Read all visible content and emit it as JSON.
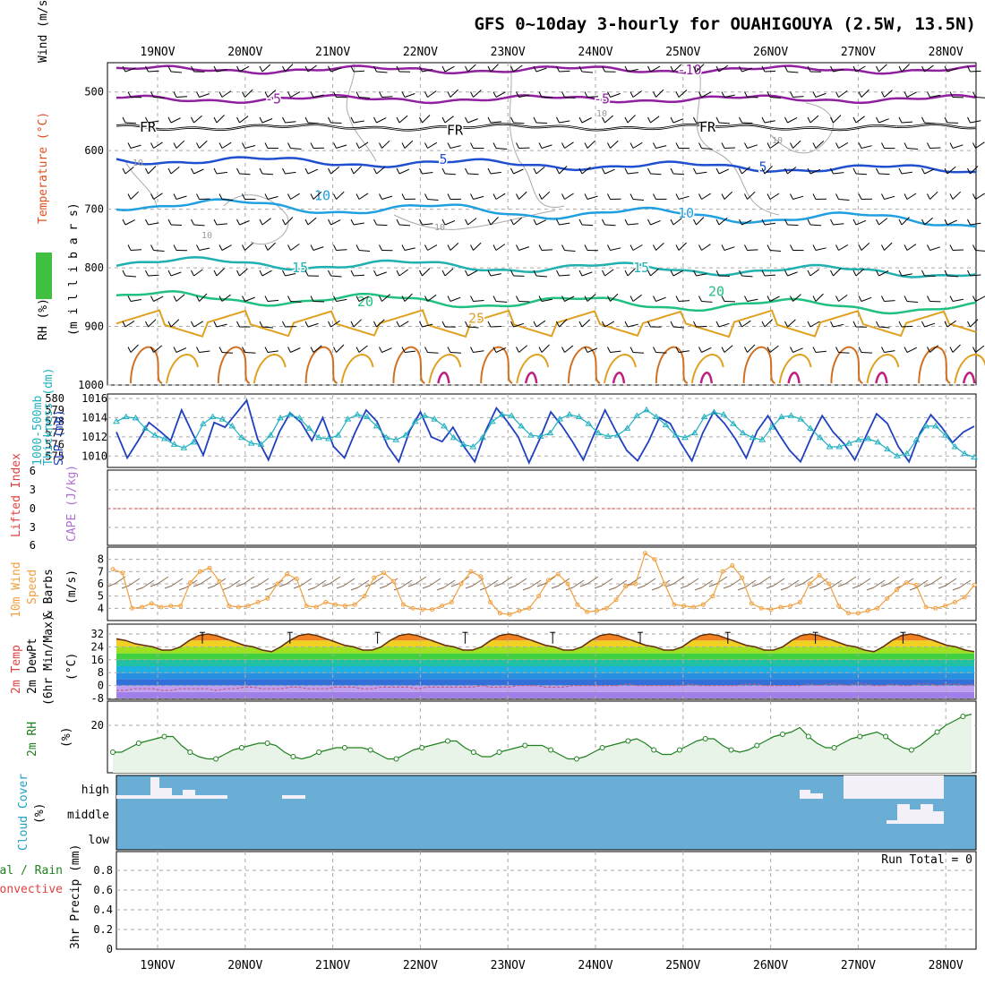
{
  "title": "GFS 0~10day 3-hourly for OUAHIGOUYA (2.5W, 13.5N)",
  "date_labels": [
    "19NOV",
    "20NOV",
    "21NOV",
    "22NOV",
    "23NOV",
    "24NOV",
    "25NOV",
    "26NOV",
    "27NOV",
    "28NOV"
  ],
  "panel_labels": {
    "upper": {
      "wind": "Wind (m/s)",
      "temp": "Temperature (°C)",
      "rh": "RH (%)",
      "pressure": "(m i l l i b a r s)"
    },
    "slp": {
      "thick1": "1000-500mb",
      "thick2": "Thickness (dm)",
      "slp": "SLP (mb)"
    },
    "cape": {
      "li": "Lifted Index",
      "cape": "CAPE (J/kg)"
    },
    "wind10": {
      "l1": "10m Wind",
      "l2": "Speed",
      "l3": "& Barbs",
      "l4": "(m/s)"
    },
    "temp2m": {
      "l1": "2m Temp",
      "l2": "2m DewPt",
      "l3": "(6hr Min/Max)",
      "l4": "(°C)"
    },
    "rh2m": {
      "l1": "2m RH",
      "l2": "(%)"
    },
    "cloud": {
      "l1": "Cloud Cover",
      "l2": "(%)",
      "high": "high",
      "middle": "middle",
      "low": "low"
    },
    "precip": {
      "l1": "tal / Rain",
      "l2": "Convective",
      "l3": "3hr Precip (mm)",
      "run_total": "Run Total = 0"
    }
  },
  "colors": {
    "grid": "#aaaaaa",
    "slp": "#2040c0",
    "thickness": "#20b0c0",
    "wind": "#f0a040",
    "barb": "#8a6a50",
    "rh2m": "#208020",
    "rh_fill": "#e8f4e8",
    "cloud_bg": "#6aaed6",
    "cloud_fill": "#f4f0f8",
    "cape_zero": "#e04040"
  },
  "chart_data": [
    {
      "panel": "upper-air",
      "type": "contour",
      "y_label": "millibars",
      "ylim": [
        450,
        1000
      ],
      "y_ticks": [
        500,
        600,
        700,
        800,
        900,
        1000
      ],
      "contour_labels": [
        {
          "text": "-10",
          "color": "#9020a0"
        },
        {
          "text": "-5",
          "color": "#9020a0"
        },
        {
          "text": "FR",
          "color": "#000000"
        },
        {
          "text": "5",
          "color": "#2050d0"
        },
        {
          "text": "10",
          "color": "#20a0e0"
        },
        {
          "text": "15",
          "color": "#20b0b0"
        },
        {
          "text": "20",
          "color": "#20c080"
        },
        {
          "text": "25",
          "color": "#e0a020"
        },
        {
          "text": "10",
          "color": "#999999"
        }
      ]
    },
    {
      "panel": "slp-thickness",
      "type": "line",
      "series": [
        {
          "name": "SLP (mb)",
          "values": [
            1012.5,
            1009.8,
            1011.6,
            1013.5,
            1012.6,
            1011.6,
            1014.8,
            1012.4,
            1010.1,
            1013.5,
            1013.0,
            1014.4,
            1015.8,
            1011.8,
            1009.6,
            1012.5,
            1014.5,
            1013.5,
            1011.6,
            1014.0,
            1011.0,
            1009.8,
            1012.5,
            1014.8,
            1013.6,
            1011.0,
            1009.4,
            1012.6,
            1014.6,
            1012.0,
            1011.5,
            1013.0,
            1011.0,
            1009.4,
            1012.6,
            1015.0,
            1013.6,
            1012.0,
            1009.3,
            1011.8,
            1014.6,
            1013.2,
            1011.5,
            1009.6,
            1012.3,
            1014.8,
            1012.6,
            1010.6,
            1009.5,
            1011.5,
            1014.0,
            1013.4,
            1011.3,
            1009.5,
            1012.4,
            1014.6,
            1013.4,
            1011.8,
            1009.8,
            1012.6,
            1014.2,
            1012.3,
            1010.6,
            1009.4,
            1012.0,
            1014.2,
            1012.5,
            1011.3,
            1009.6,
            1012.0,
            1014.4,
            1013.4,
            1011.0,
            1009.4,
            1012.4,
            1014.3,
            1013.0,
            1011.4,
            1012.5,
            1013.1
          ]
        },
        {
          "name": "Thickness (dm)",
          "values": [
            578.0,
            578.4,
            578.3,
            577.4,
            576.8,
            576.5,
            576.0,
            575.7,
            576.2,
            577.8,
            578.4,
            578.2,
            577.6,
            576.6,
            576.1,
            576.0,
            576.8,
            578.3,
            578.6,
            578.3,
            577.4,
            576.6,
            576.5,
            576.8,
            578.2,
            578.6,
            578.4,
            577.6,
            576.6,
            576.4,
            576.8,
            578.0,
            578.5,
            578.2,
            577.6,
            576.6,
            576.0,
            575.8,
            576.6,
            578.0,
            578.6,
            578.5,
            577.6,
            576.8,
            576.7,
            577.0,
            578.2,
            578.6,
            578.4,
            577.8,
            577.0,
            576.7,
            576.8,
            577.4,
            578.5,
            579.0,
            578.4,
            577.7,
            576.8,
            576.6,
            577.0,
            578.4,
            578.8,
            578.6,
            577.8,
            577.0,
            576.6,
            576.4,
            577.5,
            578.4,
            578.5,
            578.2,
            577.4,
            576.6,
            575.8,
            575.8,
            576.1,
            576.4,
            576.5,
            576.2,
            575.6,
            575.0,
            575.2,
            576.4,
            577.6,
            577.6,
            576.8,
            575.8,
            575.2,
            574.9
          ]
        }
      ],
      "y_left_ticks": [
        575,
        576,
        577,
        578,
        579,
        580
      ],
      "y_right_ticks": [
        1010,
        1012,
        1014,
        1016
      ]
    },
    {
      "panel": "cape-lifted-index",
      "type": "line",
      "y_ticks": [
        6,
        3,
        0,
        3,
        6
      ],
      "series": []
    },
    {
      "panel": "wind-10m",
      "type": "line",
      "ylim": [
        3,
        9
      ],
      "y_ticks": [
        4,
        5,
        6,
        7,
        8
      ],
      "series": [
        {
          "name": "Speed",
          "values": [
            7.2,
            6.9,
            4.0,
            4.1,
            4.4,
            4.1,
            4.2,
            4.2,
            6.1,
            7.0,
            7.3,
            6.2,
            4.2,
            4.1,
            4.2,
            4.5,
            4.8,
            6.0,
            6.8,
            6.4,
            4.2,
            4.1,
            4.5,
            4.3,
            4.2,
            4.3,
            5.0,
            6.5,
            6.9,
            6.2,
            4.3,
            4.0,
            3.9,
            3.9,
            4.2,
            4.5,
            6.0,
            7.0,
            6.6,
            4.5,
            3.6,
            3.5,
            3.8,
            4.0,
            5.0,
            6.3,
            6.8,
            6.0,
            4.3,
            3.7,
            3.8,
            4.0,
            4.7,
            5.8,
            6.0,
            8.5,
            8.0,
            6.0,
            4.3,
            4.2,
            4.1,
            4.3,
            5.0,
            7.0,
            7.5,
            6.5,
            4.4,
            4.0,
            3.9,
            4.1,
            4.2,
            4.5,
            6.0,
            6.7,
            6.0,
            4.2,
            3.6,
            3.6,
            3.8,
            4.0,
            4.8,
            5.5,
            6.1,
            5.9,
            4.1,
            4.0,
            4.2,
            4.5,
            4.9,
            5.9
          ]
        }
      ]
    },
    {
      "panel": "temp-2m",
      "type": "area",
      "y_ticks": [
        32,
        24,
        16,
        8,
        0,
        -8
      ],
      "series": [
        {
          "name": "2m Temp",
          "values": [
            29,
            28,
            26,
            25,
            24,
            22,
            22,
            24,
            28,
            31,
            32,
            31,
            29,
            27,
            25,
            24,
            22,
            21,
            24,
            28,
            31,
            32,
            31,
            29,
            27,
            25,
            24,
            22,
            22,
            24,
            28,
            31,
            32,
            31,
            29,
            27,
            25,
            24,
            22,
            22,
            24,
            28,
            31,
            32,
            31,
            29,
            27,
            25,
            24,
            22,
            22,
            24,
            28,
            31,
            32,
            31,
            29,
            27,
            25,
            24,
            22,
            22,
            24,
            28,
            31,
            32,
            31,
            29,
            27,
            25,
            24,
            22,
            22,
            24,
            28,
            31,
            32,
            31,
            29,
            27,
            25,
            24,
            22,
            21,
            24,
            28,
            31,
            32,
            31,
            29,
            27,
            25,
            24,
            22,
            21
          ]
        },
        {
          "name": "2m DewPt",
          "values": [
            -3,
            -3,
            -2,
            -2,
            -2,
            -3,
            -3,
            -2,
            -2,
            -2,
            -2,
            -3,
            -2,
            -2,
            -1,
            -1,
            -2,
            -2,
            -2,
            -1,
            -1,
            -2,
            -2,
            -2,
            -1,
            -1,
            -1,
            -2,
            -2,
            -1,
            -1,
            -1,
            -1,
            -2,
            -1,
            -1,
            -1,
            -1,
            -1,
            -1,
            0,
            -1,
            -1,
            -1,
            0,
            0,
            0,
            -1,
            -1,
            -1,
            0,
            0,
            0,
            0,
            0,
            0,
            1,
            0,
            0,
            0,
            0,
            0,
            0,
            1,
            0,
            0,
            0,
            0,
            0,
            1,
            1,
            0,
            0,
            0,
            0,
            0,
            1,
            0,
            1,
            1,
            0,
            1,
            1,
            0,
            0,
            1,
            0,
            0,
            1,
            1,
            0,
            1,
            1,
            0,
            1
          ]
        }
      ]
    },
    {
      "panel": "rh-2m",
      "type": "line",
      "y_ticks": [
        20
      ],
      "series": [
        {
          "name": "2m RH",
          "values": [
            8,
            8,
            10,
            12,
            13,
            14,
            15,
            15,
            11,
            8,
            6,
            5,
            5,
            7,
            9,
            10,
            11,
            12,
            12,
            11,
            8,
            6,
            5,
            6,
            8,
            9,
            10,
            10,
            10,
            10,
            9,
            7,
            5,
            5,
            7,
            9,
            10,
            11,
            12,
            13,
            13,
            10,
            8,
            6,
            6,
            8,
            9,
            10,
            11,
            11,
            11,
            9,
            7,
            5,
            5,
            6,
            8,
            10,
            11,
            12,
            13,
            14,
            12,
            9,
            7,
            7,
            9,
            11,
            13,
            14,
            14,
            11,
            9,
            8,
            9,
            11,
            13,
            15,
            16,
            17,
            19,
            15,
            12,
            10,
            10,
            12,
            14,
            15,
            16,
            17,
            15,
            12,
            10,
            9,
            11,
            14,
            17,
            20,
            22,
            24,
            25
          ]
        }
      ]
    },
    {
      "panel": "cloud-cover",
      "type": "bar",
      "levels": [
        "high",
        "middle",
        "low"
      ]
    },
    {
      "panel": "precip-3hr",
      "type": "bar",
      "ylim": [
        0,
        1
      ],
      "y_ticks": [
        0,
        0.2,
        0.4,
        0.6,
        0.8
      ],
      "values": []
    }
  ]
}
